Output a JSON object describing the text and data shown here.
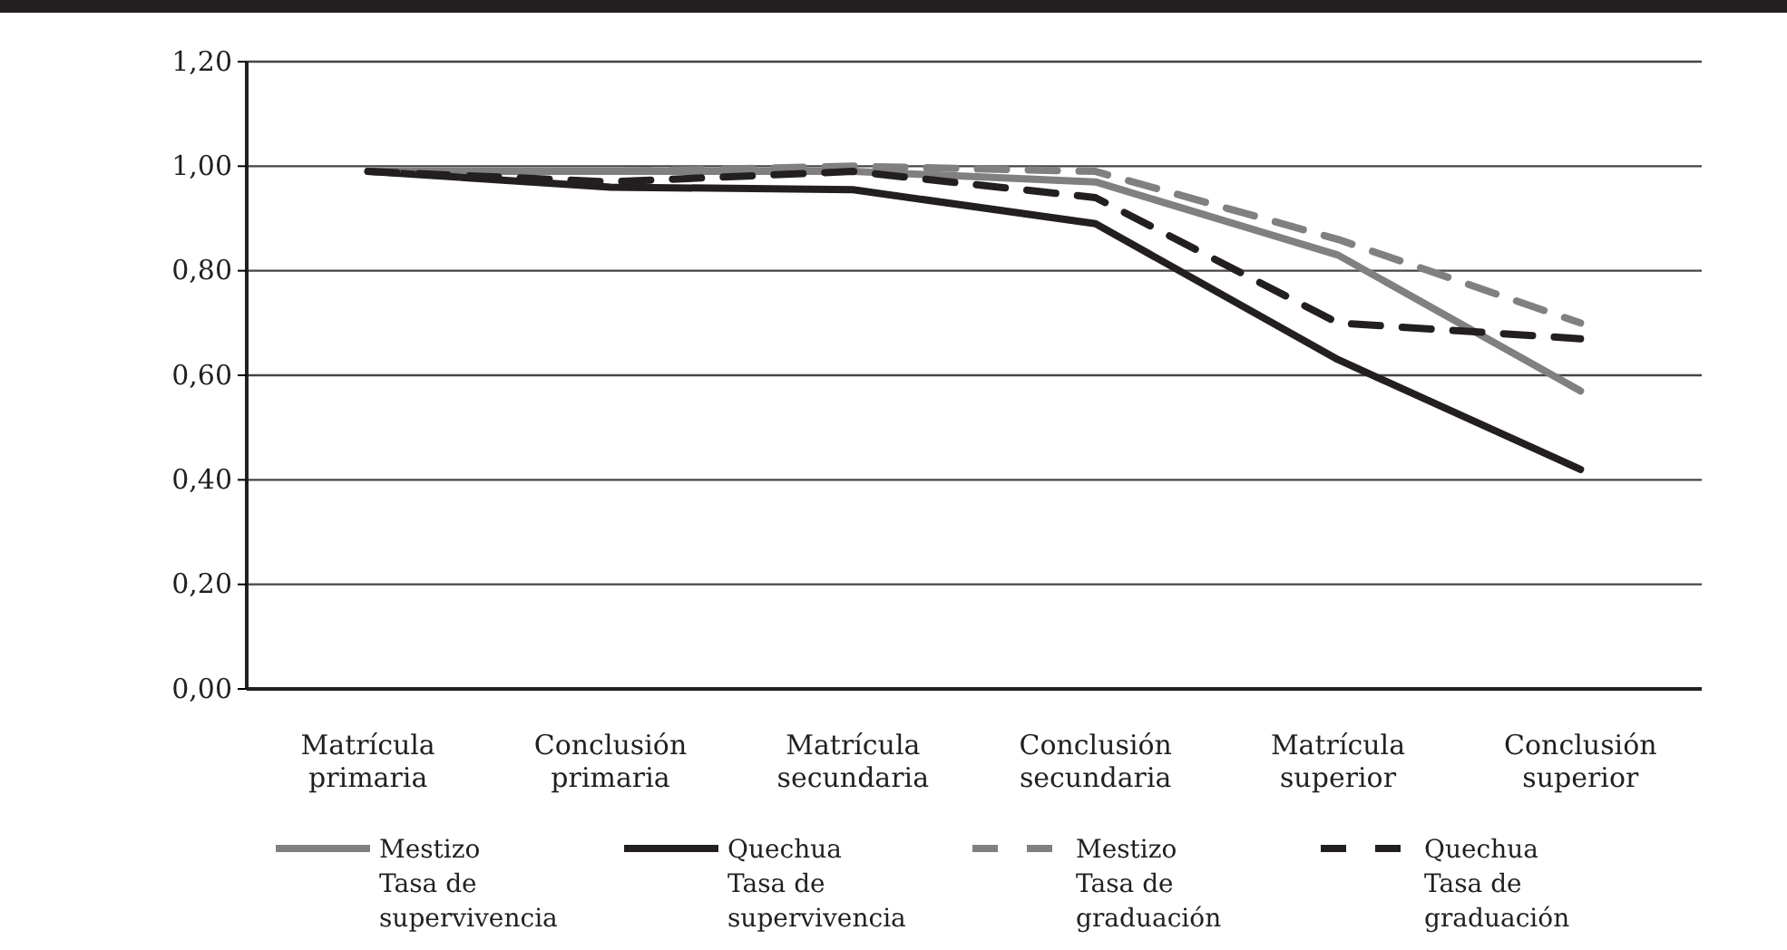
{
  "chart_data": {
    "type": "line",
    "categories": [
      "Matrícula primaria",
      "Conclusión primaria",
      "Matrícula secundaria",
      "Conclusión secundaria",
      "Matrícula superior",
      "Conclusión superior"
    ],
    "series": [
      {
        "name": "Mestizo Tasa de supervivencia",
        "color": "#808080",
        "line_style": "solid",
        "values": [
          0.99,
          0.99,
          0.99,
          0.97,
          0.83,
          0.57
        ]
      },
      {
        "name": "Quechua Tasa de supervivencia",
        "color": "#231f20",
        "line_style": "solid",
        "values": [
          0.99,
          0.96,
          0.955,
          0.89,
          0.63,
          0.42
        ]
      },
      {
        "name": "Mestizo Tasa de graduación",
        "color": "#808080",
        "line_style": "dashed",
        "values": [
          0.99,
          0.99,
          1.0,
          0.99,
          0.86,
          0.7
        ]
      },
      {
        "name": "Quechua Tasa de graduación",
        "color": "#231f20",
        "line_style": "dashed",
        "values": [
          0.99,
          0.97,
          0.99,
          0.94,
          0.7,
          0.67
        ]
      }
    ],
    "ylim": [
      0,
      1.2
    ],
    "yticks": [
      {
        "value": 0,
        "label": "0,00"
      },
      {
        "value": 0.2,
        "label": "0,20"
      },
      {
        "value": 0.4,
        "label": "0,40"
      },
      {
        "value": 0.6,
        "label": "0,60"
      },
      {
        "value": 0.8,
        "label": "0,80"
      },
      {
        "value": 1,
        "label": "1,00"
      },
      {
        "value": 1.2,
        "label": "1,20"
      }
    ],
    "grid": "y",
    "legend": "bottom",
    "marker": "none"
  }
}
